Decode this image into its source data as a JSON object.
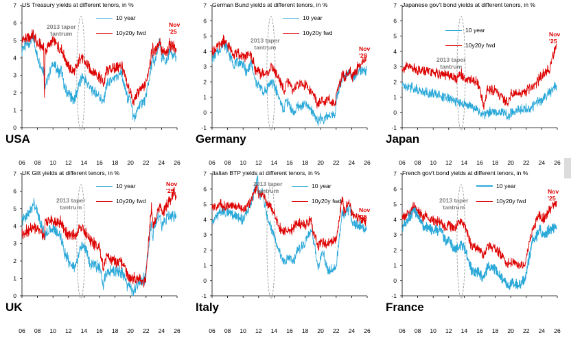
{
  "colors": {
    "ten_year": "#2aa8d8",
    "fwd": "#dd0000",
    "oval": "#999999",
    "note": "#7f7f7f",
    "nov": "#e00000"
  },
  "chart_data": [
    {
      "type": "line",
      "country": "USA",
      "title": "US Treasury yields at different tenors, in %",
      "x_ticks": [
        "06",
        "08",
        "10",
        "12",
        "14",
        "16",
        "18",
        "20",
        "22",
        "24",
        "26"
      ],
      "y_ticks": [
        "0",
        "1",
        "2",
        "3",
        "4",
        "5",
        "6",
        "7"
      ],
      "ylim": [
        0,
        7
      ],
      "xlim": [
        2006,
        2026
      ],
      "annotation": "2013 taper tantrum",
      "end_label": "Nov '25",
      "series": [
        {
          "name": "10 year",
          "x": [
            2006,
            2007,
            2007.5,
            2008,
            2008.9,
            2009,
            2010,
            2010.9,
            2011,
            2011.6,
            2012,
            2012.6,
            2013,
            2013.5,
            2013.9,
            2014,
            2015,
            2016,
            2016.5,
            2016.9,
            2018,
            2018.9,
            2019,
            2019.7,
            2020,
            2020.3,
            2020.6,
            2021,
            2021.9,
            2022,
            2022.9,
            2023,
            2023.8,
            2024,
            2024.7,
            2025,
            2025.9
          ],
          "values": [
            4.5,
            4.9,
            5.1,
            4.0,
            3.2,
            2.4,
            3.7,
            3.0,
            3.4,
            2.1,
            2.0,
            1.5,
            1.9,
            2.6,
            3.0,
            2.8,
            2.2,
            1.8,
            1.4,
            2.4,
            2.8,
            3.2,
            2.7,
            1.6,
            1.8,
            0.7,
            0.6,
            1.2,
            1.6,
            1.8,
            4.0,
            3.6,
            4.9,
            4.0,
            3.7,
            4.5,
            4.0
          ]
        },
        {
          "name": "10y20y fwd",
          "x": [
            2006,
            2007,
            2007.5,
            2008,
            2008.8,
            2008.9,
            2009,
            2010,
            2010.9,
            2011,
            2011.6,
            2012,
            2012.7,
            2013,
            2013.6,
            2014,
            2015,
            2016,
            2016.6,
            2016.9,
            2018,
            2018.9,
            2019,
            2019.7,
            2020,
            2020.3,
            2021,
            2021.9,
            2022,
            2022.9,
            2023,
            2023.8,
            2024,
            2024.7,
            2025,
            2025.9
          ],
          "values": [
            5.0,
            5.2,
            5.3,
            4.8,
            4.6,
            1.8,
            4.4,
            5.0,
            4.5,
            4.6,
            3.9,
            3.5,
            3.2,
            3.4,
            4.1,
            3.8,
            3.3,
            2.9,
            2.5,
            3.3,
            3.4,
            3.6,
            3.3,
            2.3,
            2.1,
            1.4,
            2.0,
            2.4,
            2.6,
            4.6,
            4.3,
            5.0,
            4.4,
            4.2,
            4.8,
            4.5
          ]
        }
      ]
    },
    {
      "type": "line",
      "country": "Germany",
      "title": "German Bund yields at different tenors, in %",
      "x_ticks": [
        "06",
        "08",
        "10",
        "12",
        "14",
        "16",
        "18",
        "20",
        "22",
        "24",
        "26"
      ],
      "y_ticks": [
        "-1",
        "0",
        "1",
        "2",
        "3",
        "4",
        "5",
        "6",
        "7"
      ],
      "ylim": [
        -1,
        7
      ],
      "xlim": [
        2006,
        2026
      ],
      "annotation": "2013 taper tantrum",
      "end_label": "Nov '25",
      "series": [
        {
          "name": "10 year",
          "x": [
            2006,
            2007,
            2007.5,
            2008,
            2008.9,
            2009,
            2010,
            2010.5,
            2011,
            2011.6,
            2012,
            2012.6,
            2013,
            2013.6,
            2014,
            2014.9,
            2015,
            2015.3,
            2015.5,
            2016,
            2016.5,
            2017,
            2018,
            2019,
            2019.6,
            2020,
            2020.3,
            2021,
            2021.9,
            2022,
            2022.9,
            2023,
            2023.8,
            2024,
            2025,
            2025.9
          ],
          "values": [
            3.5,
            4.1,
            4.6,
            4.1,
            3.0,
            3.3,
            3.2,
            2.5,
            3.3,
            2.0,
            1.8,
            1.3,
            1.5,
            2.0,
            1.8,
            0.6,
            0.4,
            0.1,
            0.8,
            0.5,
            -0.1,
            0.4,
            0.5,
            0.1,
            -0.7,
            -0.3,
            -0.5,
            -0.2,
            -0.1,
            0.8,
            2.5,
            2.2,
            2.9,
            2.2,
            2.7,
            2.7
          ]
        },
        {
          "name": "10y20y fwd",
          "x": [
            2006,
            2007,
            2007.5,
            2008,
            2008.9,
            2009,
            2010,
            2011,
            2011.6,
            2012,
            2012.6,
            2013,
            2013.6,
            2014,
            2014.6,
            2015,
            2015.3,
            2015.6,
            2016,
            2016.5,
            2017,
            2018,
            2019,
            2019.6,
            2020,
            2021,
            2021.9,
            2022,
            2022.9,
            2023,
            2023.8,
            2024,
            2025,
            2025.9
          ],
          "values": [
            4.0,
            4.4,
            4.7,
            4.4,
            3.8,
            4.0,
            3.6,
            3.8,
            2.8,
            2.6,
            2.5,
            2.5,
            2.9,
            2.8,
            2.2,
            1.8,
            1.4,
            2.1,
            1.8,
            1.4,
            1.8,
            1.8,
            1.2,
            0.5,
            0.7,
            0.8,
            0.6,
            1.2,
            2.5,
            2.2,
            2.8,
            2.3,
            3.1,
            3.6
          ]
        }
      ]
    },
    {
      "type": "line",
      "country": "Japan",
      "title": "Japanese gov't bond yields at different tenors, in %",
      "x_ticks": [
        "06",
        "08",
        "10",
        "12",
        "14",
        "16",
        "18",
        "20",
        "22",
        "24",
        "26"
      ],
      "y_ticks": [
        "-1",
        "0",
        "1",
        "2",
        "3",
        "4",
        "5",
        "6",
        "7"
      ],
      "ylim": [
        -1,
        7
      ],
      "xlim": [
        2006,
        2026
      ],
      "annotation": "2013 taper tantrum",
      "end_label": "Nov '25",
      "series": [
        {
          "name": "10 year",
          "x": [
            2006,
            2007,
            2008,
            2009,
            2010,
            2011,
            2012,
            2013,
            2014,
            2015,
            2016,
            2016.5,
            2017,
            2018,
            2019,
            2019.7,
            2020,
            2021,
            2022,
            2022.9,
            2023,
            2024,
            2025,
            2025.9
          ],
          "values": [
            1.8,
            1.7,
            1.5,
            1.3,
            1.2,
            1.1,
            0.9,
            0.7,
            0.5,
            0.4,
            0.0,
            -0.2,
            0.0,
            0.05,
            0.0,
            -0.2,
            0.0,
            0.1,
            0.2,
            0.4,
            0.6,
            0.8,
            1.3,
            1.8
          ]
        },
        {
          "name": "10y20y fwd",
          "x": [
            2006,
            2007,
            2008,
            2009,
            2010,
            2011,
            2012,
            2013,
            2013.5,
            2014,
            2015,
            2015.6,
            2016,
            2016.5,
            2016.9,
            2017,
            2018,
            2019,
            2019.7,
            2020,
            2021,
            2022,
            2022.9,
            2023,
            2024,
            2025,
            2025.5,
            2025.9
          ],
          "values": [
            2.9,
            3.0,
            2.8,
            2.7,
            2.6,
            2.5,
            2.4,
            2.2,
            2.6,
            2.2,
            2.1,
            2.0,
            1.5,
            0.4,
            1.2,
            1.5,
            1.4,
            0.9,
            0.6,
            1.2,
            1.2,
            1.4,
            1.8,
            1.7,
            2.4,
            2.9,
            3.8,
            4.5
          ]
        }
      ]
    },
    {
      "type": "line",
      "country": "UK",
      "title": "UK Gilt yields at different tenors, in %",
      "x_ticks": [
        "06",
        "08",
        "10",
        "12",
        "14",
        "16",
        "18",
        "20",
        "22",
        "24",
        "26"
      ],
      "y_ticks": [
        "0",
        "1",
        "2",
        "3",
        "4",
        "5",
        "6",
        "7"
      ],
      "ylim": [
        0,
        7
      ],
      "xlim": [
        2006,
        2026
      ],
      "annotation": "2013 taper tantrum",
      "end_label": "Nov '25",
      "series": [
        {
          "name": "10 year",
          "x": [
            2006,
            2007,
            2007.5,
            2008,
            2008.9,
            2009,
            2010,
            2011,
            2011.6,
            2012,
            2012.6,
            2013,
            2013.6,
            2014,
            2014.9,
            2015,
            2016,
            2016.5,
            2016.9,
            2018,
            2019,
            2019.6,
            2020,
            2020.3,
            2021,
            2021.9,
            2022,
            2022.7,
            2022.9,
            2023,
            2023.8,
            2024,
            2025,
            2025.9
          ],
          "values": [
            4.3,
            4.8,
            5.3,
            4.7,
            3.5,
            3.6,
            3.9,
            3.4,
            2.3,
            2.0,
            1.6,
            1.8,
            2.8,
            2.9,
            1.7,
            1.9,
            1.6,
            0.7,
            1.3,
            1.5,
            1.3,
            0.5,
            0.6,
            0.2,
            0.8,
            1.0,
            1.5,
            4.2,
            3.3,
            4.0,
            4.6,
            4.0,
            4.6,
            4.5
          ]
        },
        {
          "name": "10y20y fwd",
          "x": [
            2006,
            2007,
            2008,
            2008.9,
            2009,
            2010,
            2011,
            2011.6,
            2012,
            2013,
            2013.6,
            2014,
            2015,
            2016,
            2016.5,
            2016.9,
            2018,
            2019,
            2019.6,
            2020,
            2021,
            2021.9,
            2022,
            2022.7,
            2022.9,
            2023,
            2023.8,
            2024,
            2025,
            2025.6,
            2025.9
          ],
          "values": [
            3.6,
            3.8,
            3.9,
            3.4,
            4.3,
            4.3,
            4.2,
            3.7,
            3.5,
            3.5,
            4.0,
            3.7,
            3.1,
            2.8,
            1.6,
            2.2,
            2.0,
            1.8,
            1.2,
            1.0,
            1.0,
            0.8,
            1.3,
            5.2,
            3.9,
            4.2,
            5.2,
            4.7,
            5.4,
            5.9,
            5.6
          ]
        }
      ]
    },
    {
      "type": "line",
      "country": "Italy",
      "title": "Italian BTP yields at different tenors, in %",
      "x_ticks": [
        "06",
        "08",
        "10",
        "12",
        "14",
        "16",
        "18",
        "20",
        "22",
        "24",
        "26"
      ],
      "y_ticks": [
        "-1",
        "0",
        "1",
        "2",
        "3",
        "4",
        "5",
        "6",
        "7"
      ],
      "ylim": [
        -1,
        7
      ],
      "xlim": [
        2006,
        2026
      ],
      "annotation": "2013 taper tantrum",
      "end_label": "Nov '25",
      "series": [
        {
          "name": "10 year",
          "x": [
            2006,
            2007,
            2008,
            2009,
            2010,
            2011,
            2011.9,
            2012,
            2012.5,
            2013,
            2014,
            2015,
            2015.3,
            2016,
            2016.5,
            2017,
            2018,
            2018.8,
            2019,
            2019.7,
            2020,
            2020.3,
            2021,
            2022,
            2022.8,
            2023,
            2023.8,
            2024,
            2025,
            2025.9
          ],
          "values": [
            3.8,
            4.5,
            4.4,
            4.2,
            4.0,
            5.0,
            6.8,
            5.5,
            5.9,
            4.3,
            3.0,
            1.5,
            1.2,
            1.6,
            1.2,
            2.0,
            2.5,
            3.4,
            2.8,
            0.9,
            1.5,
            1.8,
            0.6,
            0.9,
            4.5,
            4.2,
            4.8,
            3.7,
            3.6,
            3.3
          ]
        },
        {
          "name": "10y20y fwd",
          "x": [
            2006,
            2007,
            2008,
            2009,
            2010,
            2011,
            2011.9,
            2012,
            2012.5,
            2013,
            2014,
            2014.6,
            2015,
            2016,
            2017,
            2018,
            2018.8,
            2019,
            2019.7,
            2020,
            2021,
            2022,
            2022.8,
            2023,
            2023.8,
            2024,
            2025,
            2025.9
          ],
          "values": [
            4.7,
            5.0,
            4.8,
            4.9,
            4.6,
            5.2,
            6.2,
            5.4,
            5.8,
            5.2,
            4.5,
            3.6,
            3.3,
            3.2,
            3.8,
            3.6,
            4.0,
            3.3,
            2.2,
            2.6,
            2.4,
            2.6,
            5.5,
            4.6,
            5.2,
            4.4,
            4.1,
            3.9
          ]
        }
      ]
    },
    {
      "type": "line",
      "country": "France",
      "title": "French gov't bond yields at different tenors, in %",
      "x_ticks": [
        "06",
        "08",
        "10",
        "12",
        "14",
        "16",
        "18",
        "20",
        "22",
        "24",
        "26"
      ],
      "y_ticks": [
        "-1",
        "0",
        "1",
        "2",
        "3",
        "4",
        "5",
        "6",
        "7"
      ],
      "ylim": [
        -1,
        7
      ],
      "xlim": [
        2006,
        2026
      ],
      "annotation": "2013 taper tantrum",
      "end_label": "Nov '25",
      "series": [
        {
          "name": "10 year",
          "x": [
            2006,
            2007,
            2007.5,
            2008,
            2008.9,
            2009,
            2010,
            2011,
            2011.6,
            2012,
            2012.6,
            2013,
            2013.6,
            2014,
            2014.9,
            2015,
            2016,
            2016.5,
            2017,
            2018,
            2019,
            2019.6,
            2020,
            2021,
            2021.9,
            2022,
            2022.9,
            2023,
            2023.8,
            2024,
            2025,
            2025.9
          ],
          "values": [
            3.4,
            4.2,
            4.6,
            4.2,
            3.4,
            3.6,
            3.2,
            3.3,
            2.6,
            2.8,
            2.1,
            2.0,
            2.5,
            2.2,
            0.8,
            0.6,
            0.5,
            0.1,
            0.9,
            0.8,
            0.1,
            -0.4,
            -0.2,
            -0.3,
            0.2,
            0.5,
            2.8,
            2.6,
            3.4,
            2.9,
            3.3,
            3.5
          ]
        },
        {
          "name": "10y20y fwd",
          "x": [
            2006,
            2007,
            2007.5,
            2008,
            2008.9,
            2009,
            2010,
            2011,
            2011.6,
            2012,
            2012.6,
            2013,
            2013.6,
            2014,
            2014.6,
            2015,
            2016,
            2016.5,
            2017,
            2018,
            2019,
            2019.6,
            2020,
            2021,
            2021.9,
            2022,
            2022.9,
            2023,
            2023.8,
            2024,
            2025,
            2025.9
          ],
          "values": [
            4.0,
            4.5,
            4.8,
            4.6,
            4.1,
            4.2,
            3.9,
            3.8,
            3.4,
            3.7,
            3.4,
            3.6,
            3.9,
            3.7,
            2.8,
            2.2,
            2.1,
            1.6,
            2.3,
            2.1,
            1.6,
            1.0,
            1.2,
            1.0,
            1.1,
            1.6,
            3.6,
            3.5,
            4.4,
            3.9,
            4.6,
            5.2
          ]
        }
      ]
    }
  ]
}
